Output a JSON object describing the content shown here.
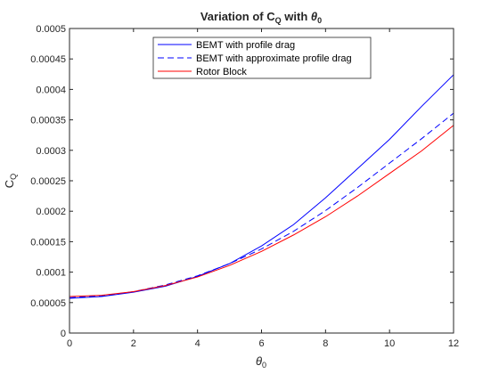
{
  "chart_data": {
    "type": "line",
    "title": {
      "prefix": "Variation  of  C",
      "prefix_sub": "Q",
      "middle": "  with  ",
      "symbol": "θ",
      "symbol_sub": "0"
    },
    "xlabel": {
      "symbol": "θ",
      "sub": "0"
    },
    "ylabel": {
      "main": "C",
      "sub": "Q"
    },
    "xlim": [
      0,
      12
    ],
    "ylim": [
      0,
      0.0005
    ],
    "xticks": [
      0,
      2,
      4,
      6,
      8,
      10,
      12
    ],
    "xtick_labels": [
      "0",
      "2",
      "4",
      "6",
      "8",
      "10",
      "12"
    ],
    "yticks": [
      0,
      5e-05,
      0.0001,
      0.00015,
      0.0002,
      0.00025,
      0.0003,
      0.00035,
      0.0004,
      0.00045,
      0.0005
    ],
    "ytick_labels": [
      "0",
      "0.00005",
      "0.0001",
      "0.00015",
      "0.0002",
      "0.00025",
      "0.0003",
      "0.00035",
      "0.0004",
      "0.00045",
      "0.0005"
    ],
    "grid": false,
    "legend_position": "top-center",
    "x": [
      0,
      1,
      2,
      3,
      4,
      5,
      6,
      7,
      8,
      9,
      10,
      11,
      12
    ],
    "series": [
      {
        "name": "BEMT with profile drag",
        "color": "#0000ff",
        "line_style": "solid",
        "values": [
          5.7e-05,
          6e-05,
          6.7e-05,
          7.7e-05,
          9.3e-05,
          0.000114,
          0.000143,
          0.000178,
          0.000222,
          0.00027,
          0.000318,
          0.000372,
          0.000424
        ]
      },
      {
        "name": "BEMT with approximate profile drag",
        "color": "#0000ff",
        "line_style": "dashed",
        "values": [
          5.8e-05,
          6.1e-05,
          6.8e-05,
          7.9e-05,
          9.4e-05,
          0.000114,
          0.000138,
          0.000167,
          0.000201,
          0.000239,
          0.000279,
          0.000319,
          0.000361
        ]
      },
      {
        "name": "Rotor Block",
        "color": "#ff0000",
        "line_style": "solid",
        "values": [
          6e-05,
          6.2e-05,
          6.8e-05,
          7.8e-05,
          9.2e-05,
          0.000111,
          0.000134,
          0.000161,
          0.000191,
          0.000225,
          0.000262,
          0.000299,
          0.000341
        ]
      }
    ]
  }
}
